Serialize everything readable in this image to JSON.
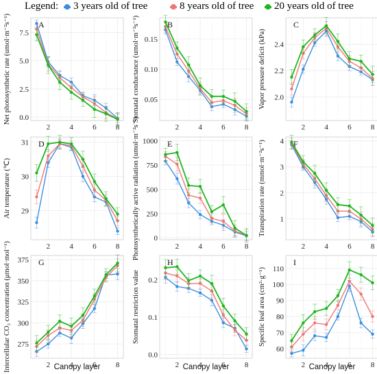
{
  "legend": {
    "title": "Legend:",
    "entries": [
      {
        "label": "3 years old of  tree",
        "color": "#3b8fe0"
      },
      {
        "label": "8 years old of  tree",
        "color": "#f07575"
      },
      {
        "label": "20  years old of  tree",
        "color": "#1fb51f"
      }
    ]
  },
  "x_label": "Canopy layer",
  "chart_data": [
    {
      "type": "line",
      "panel": "A",
      "ylabel": "Net photosynthetic rate (umol·m⁻²s⁻¹)",
      "x": [
        1,
        2,
        3,
        4,
        5,
        6,
        7,
        8
      ],
      "xlim": [
        0.5,
        8.5
      ],
      "ylim": [
        -0.3,
        8.8
      ],
      "xticks": [
        2,
        4,
        6,
        8
      ],
      "yticks": [
        0.0,
        2.5,
        5.0,
        7.5
      ],
      "ytick_labels": [
        "0.0",
        "2.5",
        "5.0",
        "7.5"
      ],
      "series": [
        {
          "name": "3 years old of  tree",
          "values": [
            8.3,
            4.9,
            3.7,
            3.1,
            1.9,
            1.5,
            0.8,
            -0.1
          ]
        },
        {
          "name": "8 years old of  tree",
          "values": [
            7.8,
            4.7,
            3.5,
            2.6,
            1.8,
            1.2,
            0.4,
            -0.15
          ]
        },
        {
          "name": "20  years old of  tree",
          "values": [
            7.3,
            4.6,
            3.1,
            2.2,
            1.5,
            0.7,
            0.3,
            -0.2
          ]
        }
      ]
    },
    {
      "type": "line",
      "panel": "B",
      "ylabel": "Stomatal conductance (umol·m⁻²s⁻¹)",
      "x": [
        1,
        2,
        3,
        4,
        5,
        6,
        7,
        8
      ],
      "xlim": [
        0.5,
        8.5
      ],
      "ylim": [
        0.015,
        0.185
      ],
      "xticks": [
        2,
        4,
        6,
        8
      ],
      "yticks": [
        0.05,
        0.1,
        0.15
      ],
      "ytick_labels": [
        "0.05",
        "0.10",
        "0.15"
      ],
      "series": [
        {
          "name": "3 years old of  tree",
          "values": [
            0.165,
            0.112,
            0.088,
            0.065,
            0.038,
            0.042,
            0.033,
            0.022
          ]
        },
        {
          "name": "8 years old of  tree",
          "values": [
            0.17,
            0.125,
            0.097,
            0.068,
            0.045,
            0.048,
            0.04,
            0.026
          ]
        },
        {
          "name": "20  years old of  tree",
          "values": [
            0.178,
            0.135,
            0.107,
            0.073,
            0.055,
            0.055,
            0.047,
            0.03
          ]
        }
      ]
    },
    {
      "type": "line",
      "panel": "C",
      "ylabel": "Vapor pressure deficit (kPa)",
      "x": [
        1,
        2,
        3,
        4,
        5,
        6,
        7,
        8
      ],
      "xlim": [
        0.5,
        8.5
      ],
      "ylim": [
        1.82,
        2.6
      ],
      "xticks": [
        2,
        4,
        6,
        8
      ],
      "yticks": [
        2.0,
        2.2,
        2.4
      ],
      "ytick_labels": [
        "2.0",
        "2.2",
        "2.4"
      ],
      "series": [
        {
          "name": "3 years old of  tree",
          "values": [
            1.96,
            2.21,
            2.41,
            2.5,
            2.31,
            2.23,
            2.19,
            2.13
          ]
        },
        {
          "name": "8 years old of  tree",
          "values": [
            2.06,
            2.33,
            2.45,
            2.52,
            2.38,
            2.27,
            2.22,
            2.14
          ]
        },
        {
          "name": "20  years old of  tree",
          "values": [
            2.15,
            2.38,
            2.47,
            2.54,
            2.42,
            2.29,
            2.27,
            2.17
          ]
        }
      ]
    },
    {
      "type": "line",
      "panel": "D",
      "ylabel": "Air temperature (℃)",
      "x": [
        1,
        2,
        3,
        4,
        5,
        6,
        7,
        8
      ],
      "xlim": [
        0.5,
        8.5
      ],
      "ylim": [
        28.15,
        31.15
      ],
      "xticks": [
        2,
        4,
        6,
        8
      ],
      "yticks": [
        29,
        30,
        31
      ],
      "ytick_labels": [
        "29",
        "30",
        "31"
      ],
      "series": [
        {
          "name": "3 years old of  tree",
          "values": [
            28.65,
            30.4,
            30.95,
            30.85,
            30.0,
            29.4,
            29.25,
            28.4
          ]
        },
        {
          "name": "8 years old of  tree",
          "values": [
            29.4,
            30.6,
            30.95,
            30.9,
            30.3,
            29.6,
            29.3,
            28.7
          ]
        },
        {
          "name": "20  years old of  tree",
          "values": [
            30.1,
            30.95,
            31.0,
            30.95,
            30.5,
            29.85,
            29.35,
            28.9
          ]
        }
      ]
    },
    {
      "type": "line",
      "panel": "E",
      "ylabel": "Photosynthetically active radiation (umol·m⁻²s⁻¹)",
      "x": [
        1,
        2,
        3,
        4,
        5,
        6,
        7,
        8
      ],
      "xlim": [
        0.5,
        8.5
      ],
      "ylim": [
        -20,
        1040
      ],
      "xticks": [
        2,
        4,
        6,
        8
      ],
      "yticks": [
        0,
        250,
        500,
        750,
        1000
      ],
      "ytick_labels": [
        "0",
        "250",
        "500",
        "750",
        "1000"
      ],
      "series": [
        {
          "name": "3 years old of  tree",
          "values": [
            790,
            610,
            360,
            240,
            170,
            130,
            60,
            20
          ]
        },
        {
          "name": "8 years old of  tree",
          "values": [
            840,
            760,
            440,
            410,
            200,
            170,
            70,
            25
          ]
        },
        {
          "name": "20  years old of  tree",
          "values": [
            860,
            880,
            540,
            530,
            270,
            340,
            100,
            25
          ]
        }
      ]
    },
    {
      "type": "line",
      "panel": "F",
      "ylabel": "Transpiration rate (mmol·m⁻²s⁻¹)",
      "x": [
        1,
        2,
        3,
        4,
        5,
        6,
        7,
        8
      ],
      "xlim": [
        0.5,
        8.5
      ],
      "ylim": [
        0.2,
        4.15
      ],
      "xticks": [
        2,
        4,
        6,
        8
      ],
      "yticks": [
        1,
        2,
        3,
        4
      ],
      "ytick_labels": [
        "1",
        "2",
        "3",
        "4"
      ],
      "series": [
        {
          "name": "3 years old of  tree",
          "values": [
            3.85,
            3.0,
            2.4,
            1.75,
            1.05,
            1.1,
            0.9,
            0.5
          ]
        },
        {
          "name": "8 years old of  tree",
          "values": [
            3.9,
            3.1,
            2.55,
            1.9,
            1.3,
            1.3,
            1.0,
            0.6
          ]
        },
        {
          "name": "20  years old of  tree",
          "values": [
            3.95,
            3.2,
            2.75,
            2.1,
            1.55,
            1.5,
            1.15,
            0.75
          ]
        }
      ]
    },
    {
      "type": "line",
      "panel": "G",
      "ylabel": "Intercellular CO₂ concentration (μmol·mol⁻¹)",
      "x": [
        1,
        2,
        3,
        4,
        5,
        6,
        7,
        8
      ],
      "xlim": [
        0.5,
        8.5
      ],
      "ylim": [
        258,
        380
      ],
      "xticks": [
        2,
        4,
        6,
        8
      ],
      "yticks": [
        275,
        300,
        325,
        350,
        375
      ],
      "ytick_labels": [
        "275",
        "300",
        "325",
        "350",
        "375"
      ],
      "series": [
        {
          "name": "3 years old of  tree",
          "values": [
            266,
            275,
            288,
            282,
            299,
            317,
            357,
            358
          ]
        },
        {
          "name": "8 years old of  tree",
          "values": [
            272,
            285,
            294,
            291,
            303,
            328,
            354,
            368
          ]
        },
        {
          "name": "20  years old of  tree",
          "values": [
            276,
            289,
            302,
            296,
            309,
            332,
            357,
            371
          ]
        }
      ]
    },
    {
      "type": "line",
      "panel": "H",
      "ylabel": "Stomatal restriction value",
      "x": [
        1,
        2,
        3,
        4,
        5,
        6,
        7,
        8
      ],
      "xlim": [
        0.5,
        8.5
      ],
      "ylim": [
        -0.01,
        0.265
      ],
      "xticks": [
        2,
        4,
        6,
        8
      ],
      "yticks": [
        0.0,
        0.1,
        0.2
      ],
      "ytick_labels": [
        "0.0",
        "0.1",
        "0.2"
      ],
      "series": [
        {
          "name": "3 years old of  tree",
          "values": [
            0.206,
            0.182,
            0.177,
            0.165,
            0.145,
            0.085,
            0.07,
            0.015
          ]
        },
        {
          "name": "8 years old of  tree",
          "values": [
            0.218,
            0.21,
            0.19,
            0.19,
            0.17,
            0.105,
            0.065,
            0.038
          ]
        },
        {
          "name": "20  years old of  tree",
          "values": [
            0.232,
            0.235,
            0.198,
            0.21,
            0.19,
            0.13,
            0.09,
            0.055
          ]
        }
      ]
    },
    {
      "type": "line",
      "panel": "I",
      "ylabel": "Specific leaf area (cm²·g⁻¹)",
      "x": [
        1,
        2,
        3,
        4,
        5,
        6,
        7,
        8
      ],
      "xlim": [
        0.5,
        8.5
      ],
      "ylim": [
        54,
        118
      ],
      "xticks": [
        2,
        4,
        6,
        8
      ],
      "yticks": [
        60,
        70,
        80,
        90,
        100,
        110
      ],
      "ytick_labels": [
        "60",
        "70",
        "80",
        "90",
        "100",
        "110"
      ],
      "series": [
        {
          "name": "3 years old of  tree",
          "values": [
            57,
            59,
            68,
            67,
            80,
            99,
            76,
            69
          ]
        },
        {
          "name": "8 years old of  tree",
          "values": [
            61,
            69,
            76,
            75,
            87,
            102,
            94,
            80
          ]
        },
        {
          "name": "20  years old of  tree",
          "values": [
            65,
            76,
            83,
            85,
            93,
            109,
            106,
            101
          ]
        }
      ]
    }
  ]
}
